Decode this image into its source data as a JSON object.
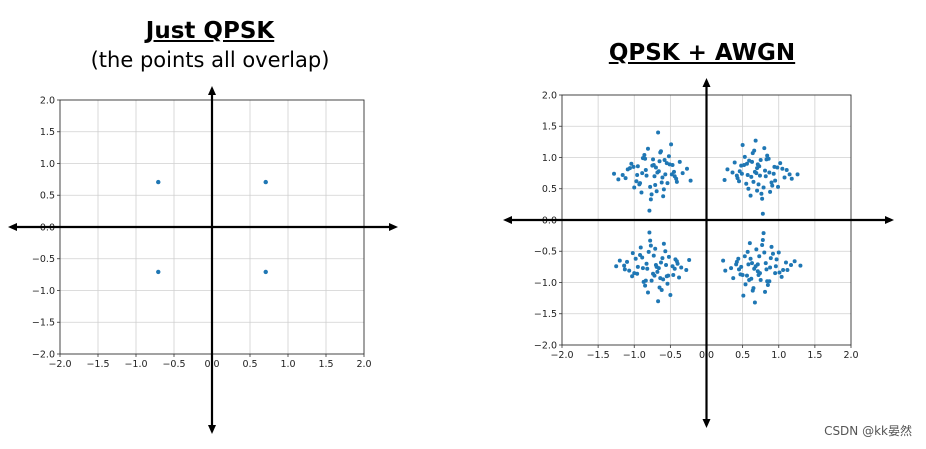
{
  "panels": [
    {
      "title": "Just QPSK",
      "subtitle": "(the points all overlap)"
    },
    {
      "title": "QPSK + AWGN",
      "subtitle": ""
    }
  ],
  "watermark": "CSDN @kk晏然",
  "chart_data": [
    {
      "type": "scatter",
      "title": "Just QPSK",
      "subtitle": "(the points all overlap)",
      "xlim": [
        -2.0,
        2.0
      ],
      "ylim": [
        -2.0,
        2.0
      ],
      "xticks": [
        "−2.0",
        "−1.5",
        "−1.0",
        "−0.5",
        "0.0",
        "0.5",
        "1.0",
        "1.5",
        "2.0"
      ],
      "yticks": [
        "2.0",
        "1.5",
        "1.0",
        "0.5",
        "0.0",
        "−0.5",
        "−1.0",
        "−1.5",
        "−2.0"
      ],
      "grid": true,
      "marker_color": "#1f77b4",
      "series": [
        {
          "x": [
            0.707,
            -0.707,
            -0.707,
            0.707
          ],
          "y": [
            0.707,
            0.707,
            -0.707,
            -0.707
          ]
        }
      ]
    },
    {
      "type": "scatter",
      "title": "QPSK + AWGN",
      "xlim": [
        -2.0,
        2.0
      ],
      "ylim": [
        -2.0,
        2.0
      ],
      "xticks": [
        "−2.0",
        "−1.5",
        "−1.0",
        "−0.5",
        "0.0",
        "0.5",
        "1.0",
        "1.5",
        "2.0"
      ],
      "yticks": [
        "2.0",
        "1.5",
        "1.0",
        "0.5",
        "0.0",
        "−0.5",
        "−1.0",
        "−1.5",
        "−2.0"
      ],
      "grid": true,
      "marker_color": "#1f77b4",
      "series": [
        {
          "cluster_centers": [
            [
              0.707,
              0.707
            ],
            [
              -0.707,
              0.707
            ],
            [
              -0.707,
              -0.707
            ],
            [
              0.707,
              -0.707
            ]
          ],
          "x": [
            0.74,
            0.52,
            0.91,
            0.63,
            0.81,
            0.45,
            0.98,
            0.7,
            0.57,
            0.86,
            0.36,
            1.08,
            0.66,
            0.79,
            0.48,
            0.93,
            0.61,
            0.75,
            1.18,
            0.29,
            0.84,
            0.55,
            0.7,
            1.02,
            0.42,
            0.88,
            0.67,
            0.5,
            0.95,
            0.73,
            1.26,
            0.58,
            0.8,
            0.62,
            0.39,
            1.11,
            0.77,
            0.69,
            0.53,
            0.9,
            0.71,
            0.46,
            0.99,
            0.64,
            0.82,
            0.25,
            1.05,
            0.59,
            0.76,
            0.87,
            0.68,
            0.43,
            0.94,
            0.72,
            0.56,
            1.15,
            0.65,
            0.83,
            0.49,
            0.78,
            -0.72,
            -0.51,
            -0.93,
            -0.65,
            -0.84,
            -0.41,
            -1.01,
            -0.69,
            -0.57,
            -0.88,
            -0.33,
            -1.12,
            -0.63,
            -0.78,
            -0.47,
            -0.96,
            -0.6,
            -0.74,
            -1.22,
            -0.27,
            -0.86,
            -0.54,
            -0.7,
            -1.04,
            -0.44,
            -0.9,
            -0.66,
            -0.49,
            -0.97,
            -0.75,
            -1.28,
            -0.59,
            -0.81,
            -0.61,
            -0.37,
            -1.09,
            -0.77,
            -0.68,
            -0.52,
            -0.92,
            -0.73,
            -0.45,
            -1.0,
            -0.64,
            -0.83,
            -0.22,
            -1.06,
            -0.58,
            -0.76,
            -0.89,
            -0.67,
            -0.42,
            -0.95,
            -0.71,
            -0.55,
            -1.16,
            -0.62,
            -0.85,
            -0.48,
            -0.79,
            -0.7,
            -0.53,
            -0.92,
            -0.64,
            -0.82,
            -0.43,
            -1.0,
            -0.71,
            -0.56,
            -0.87,
            -0.35,
            -1.1,
            -0.62,
            -0.8,
            -0.46,
            -0.95,
            -0.59,
            -0.76,
            -1.2,
            -0.28,
            -0.85,
            -0.52,
            -0.68,
            -1.03,
            -0.4,
            -0.91,
            -0.66,
            -0.5,
            -0.98,
            -0.74,
            -1.25,
            -0.57,
            -0.81,
            -0.63,
            -0.38,
            -1.13,
            -0.78,
            -0.69,
            -0.54,
            -0.89,
            -0.72,
            -0.44,
            -1.02,
            -0.65,
            -0.83,
            -0.24,
            -1.07,
            -0.6,
            -0.77,
            -0.88,
            -0.67,
            -0.41,
            -0.96,
            -0.73,
            -0.55,
            -1.14,
            -0.61,
            -0.84,
            -0.47,
            -0.79,
            0.71,
            0.5,
            0.92,
            0.62,
            0.83,
            0.44,
            1.01,
            0.69,
            0.58,
            0.87,
            0.34,
            1.1,
            0.64,
            0.8,
            0.47,
            0.96,
            0.6,
            0.75,
            1.22,
            0.26,
            0.85,
            0.53,
            0.71,
            1.04,
            0.41,
            0.9,
            0.66,
            0.51,
            0.97,
            0.74,
            1.3,
            0.57,
            0.81,
            0.63,
            0.37,
            1.12,
            0.78,
            0.68,
            0.54,
            0.89,
            0.72,
            0.45,
            1.0,
            0.65,
            0.82,
            0.23,
            1.06,
            0.59,
            0.77,
            0.88,
            0.67,
            0.42,
            0.95,
            0.73,
            0.56,
            1.17,
            0.61,
            0.84,
            0.48,
            0.79
          ],
          "y": [
            0.71,
            0.88,
            0.55,
            0.93,
            0.79,
            0.62,
            0.84,
            0.47,
            0.72,
            0.98,
            0.76,
            0.68,
            1.11,
            0.52,
            0.87,
            0.74,
            0.39,
            0.96,
            0.66,
            0.81,
            1.03,
            0.58,
            0.83,
            0.91,
            0.71,
            0.45,
            0.77,
            1.2,
            0.63,
            0.86,
            0.73,
            0.5,
            1.15,
            0.69,
            0.92,
            0.8,
            0.34,
            0.75,
            1.01,
            0.6,
            0.89,
            0.78,
            0.53,
            1.07,
            0.7,
            0.64,
            0.82,
            0.95,
            0.42,
            0.76,
            1.27,
            0.67,
            0.85,
            0.57,
            0.9,
            0.73,
            0.61,
            0.97,
            0.74,
            0.1,
            0.7,
            0.89,
            0.57,
            0.94,
            0.8,
            0.61,
            0.85,
            0.46,
            0.73,
            0.99,
            0.75,
            0.67,
            1.1,
            0.53,
            0.88,
            0.72,
            0.38,
            0.97,
            0.65,
            0.82,
            1.04,
            0.59,
            0.84,
            0.9,
            0.7,
            0.44,
            0.78,
            1.21,
            0.62,
            0.87,
            0.74,
            0.49,
            1.14,
            0.68,
            0.93,
            0.81,
            0.33,
            0.76,
            1.02,
            0.59,
            0.88,
            0.77,
            0.52,
            1.08,
            0.71,
            0.63,
            0.83,
            0.96,
            0.41,
            0.75,
            1.4,
            0.66,
            0.86,
            0.56,
            0.91,
            0.72,
            0.6,
            0.98,
            0.73,
            0.15,
            -0.72,
            -0.89,
            -0.56,
            -0.93,
            -0.78,
            -0.63,
            -0.85,
            -0.46,
            -0.72,
            -0.99,
            -0.76,
            -0.67,
            -1.12,
            -0.51,
            -0.88,
            -0.75,
            -0.38,
            -0.97,
            -0.65,
            -0.8,
            -1.05,
            -0.59,
            -0.83,
            -0.9,
            -0.7,
            -0.44,
            -0.77,
            -1.2,
            -0.62,
            -0.86,
            -0.74,
            -0.5,
            -1.16,
            -0.68,
            -0.92,
            -0.79,
            -0.33,
            -0.75,
            -1.02,
            -0.6,
            -0.89,
            -0.78,
            -0.53,
            -1.08,
            -0.7,
            -0.64,
            -0.81,
            -0.95,
            -0.41,
            -0.77,
            -1.3,
            -0.66,
            -0.86,
            -0.57,
            -0.9,
            -0.73,
            -0.61,
            -0.97,
            -0.74,
            -0.2,
            -0.71,
            -0.88,
            -0.54,
            -0.94,
            -0.79,
            -0.62,
            -0.84,
            -0.47,
            -0.71,
            -0.98,
            -0.77,
            -0.68,
            -1.13,
            -0.52,
            -0.87,
            -0.74,
            -0.37,
            -0.96,
            -0.66,
            -0.81,
            -1.04,
            -0.58,
            -0.82,
            -0.91,
            -0.71,
            -0.43,
            -0.78,
            -1.21,
            -0.63,
            -0.85,
            -0.73,
            -0.51,
            -1.15,
            -0.69,
            -0.93,
            -0.8,
            -0.32,
            -0.74,
            -1.03,
            -0.61,
            -0.88,
            -0.79,
            -0.52,
            -1.09,
            -0.69,
            -0.65,
            -0.8,
            -0.96,
            -0.4,
            -0.76,
            -1.32,
            -0.67,
            -0.85,
            -0.58,
            -0.89,
            -0.72,
            -0.62,
            -0.98,
            -0.75,
            -0.21
          ]
        }
      ]
    }
  ]
}
